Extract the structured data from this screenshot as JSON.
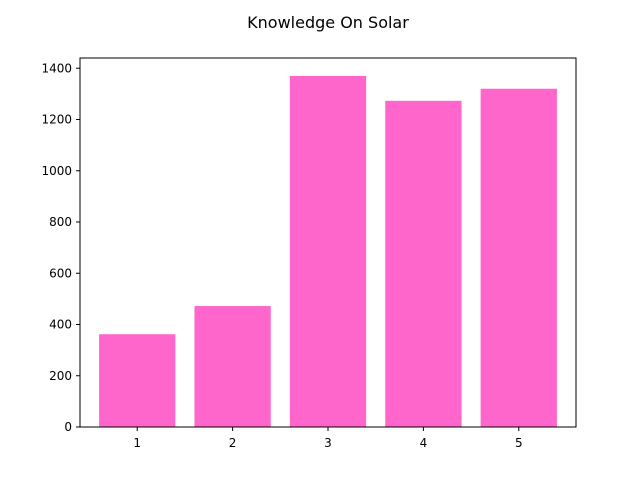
{
  "chart_data": {
    "type": "bar",
    "title": "Knowledge On Solar",
    "xlabel": "",
    "ylabel": "",
    "categories": [
      "1",
      "2",
      "3",
      "4",
      "5"
    ],
    "values": [
      362,
      472,
      1370,
      1273,
      1320
    ],
    "ylim": [
      0,
      1440
    ],
    "yticks": [
      0,
      200,
      400,
      600,
      800,
      1000,
      1200,
      1400
    ],
    "bar_color": "#ff66cc",
    "grid": false,
    "legend": "none"
  }
}
